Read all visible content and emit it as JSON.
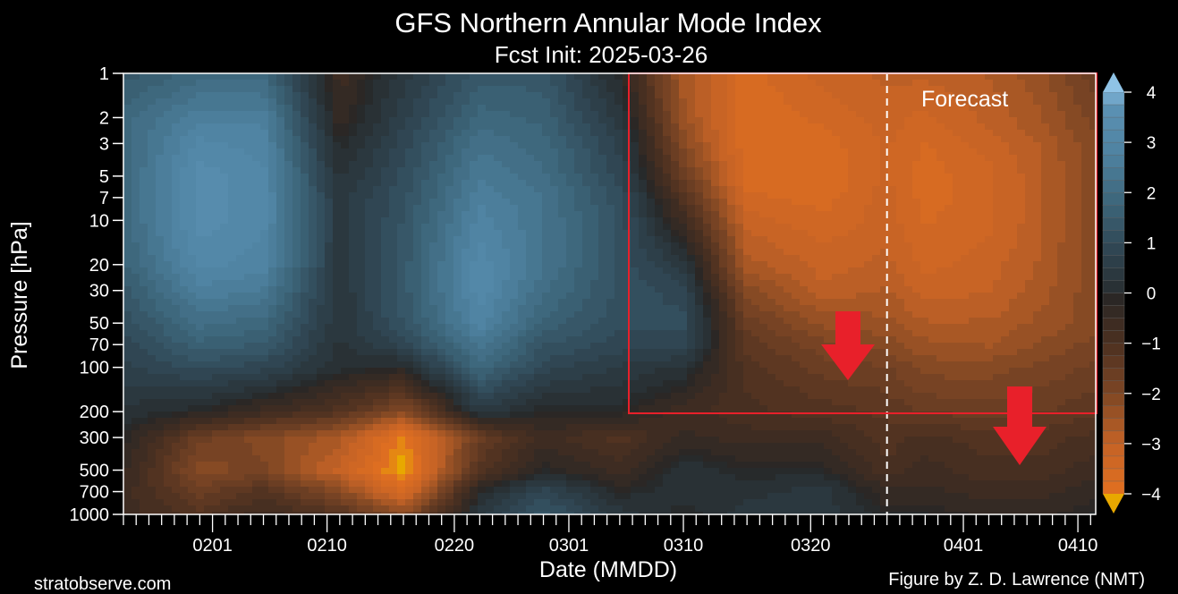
{
  "chart_data": {
    "type": "heatmap",
    "title": "GFS Northern Annular Mode Index",
    "subtitle": "Fcst Init: 2025-03-26",
    "xlabel": "Date (MMDD)",
    "ylabel": "Pressure [hPa]",
    "x_units": "day of year 2025",
    "xlim": [
      25,
      101.4
    ],
    "x_ticks": [
      {
        "day": 32,
        "label": "0201"
      },
      {
        "day": 41,
        "label": "0210"
      },
      {
        "day": 51,
        "label": "0220"
      },
      {
        "day": 60,
        "label": "0301"
      },
      {
        "day": 69,
        "label": "0310"
      },
      {
        "day": 79,
        "label": "0320"
      },
      {
        "day": 91,
        "label": "0401"
      },
      {
        "day": 100,
        "label": "0410"
      }
    ],
    "y_scale": "log",
    "ylim": [
      1000,
      1
    ],
    "y_ticks": [
      1,
      2,
      3,
      5,
      7,
      10,
      20,
      30,
      50,
      70,
      100,
      200,
      300,
      500,
      700,
      1000
    ],
    "x": [
      25,
      31,
      36,
      42,
      47,
      53,
      58,
      64,
      69,
      74,
      80,
      85,
      88,
      93,
      97,
      101
    ],
    "y": [
      1,
      2,
      3,
      5,
      7,
      10,
      20,
      30,
      50,
      70,
      100,
      200,
      300,
      500,
      700,
      1000
    ],
    "z_by_x": [
      [
        1.5,
        2,
        2,
        2,
        2,
        2,
        1.8,
        1.5,
        1.2,
        1,
        0.8,
        0.3,
        0,
        -0.3,
        -0.5,
        -0.5
      ],
      [
        2,
        2.8,
        3.2,
        3.5,
        3.5,
        3.5,
        3.2,
        2.8,
        2.2,
        1.8,
        1.2,
        0,
        -1.5,
        -2,
        -1.5,
        -1
      ],
      [
        2,
        2.8,
        3,
        3.2,
        3.2,
        3.2,
        3,
        2.6,
        2,
        1.6,
        1,
        -0.5,
        -2,
        -1.8,
        -1,
        -0.5
      ],
      [
        -0.5,
        -0.3,
        0,
        0.3,
        0.5,
        0.5,
        0.5,
        0.4,
        0.4,
        0.3,
        0.2,
        -1,
        -2.5,
        -3,
        -2,
        -1
      ],
      [
        0.5,
        0.8,
        1,
        1.2,
        1.3,
        1.4,
        1.5,
        1.5,
        1.4,
        1,
        0,
        -2,
        -4,
        -4.3,
        -3.5,
        -2
      ],
      [
        1.5,
        2,
        2.3,
        2.6,
        2.8,
        3,
        3.3,
        3.3,
        3,
        2.5,
        2,
        0.5,
        -1.5,
        -1,
        0,
        0.5
      ],
      [
        1.5,
        1.8,
        2,
        2.2,
        2.4,
        2.4,
        2.4,
        2.2,
        1.8,
        1.4,
        1,
        0,
        -0.5,
        0,
        1,
        1.5
      ],
      [
        0,
        0.5,
        0.8,
        1,
        1.2,
        1.3,
        1.3,
        1.3,
        1.2,
        1,
        0.6,
        0,
        -1,
        -0.5,
        0,
        0.5
      ],
      [
        -2.5,
        -2.3,
        -2,
        -1.5,
        -1,
        -0.5,
        0.5,
        1,
        1.2,
        1,
        0.3,
        -0.5,
        -0.3,
        0.3,
        0.3,
        0
      ],
      [
        -3.5,
        -3.6,
        -3.6,
        -3.5,
        -3.3,
        -3,
        -2.5,
        -2,
        -1.5,
        -1.2,
        -1,
        -0.8,
        -0.5,
        0,
        0.3,
        0.5
      ],
      [
        -3,
        -3.3,
        -3.5,
        -3.6,
        -3.5,
        -3.3,
        -3,
        -2.8,
        -2.2,
        -1.8,
        -1.5,
        -1,
        -0.5,
        0,
        0.5,
        0.5
      ],
      [
        -2.8,
        -3,
        -3.1,
        -3.1,
        -3,
        -3,
        -2.8,
        -2.6,
        -2.3,
        -2,
        -1.6,
        -1.2,
        -1,
        -0.8,
        -0.3,
        0
      ],
      [
        -2.8,
        -3.2,
        -3.4,
        -3.5,
        -3.5,
        -3.4,
        -3.2,
        -3,
        -2.6,
        -2.3,
        -2,
        -1.4,
        -0.8,
        -0.5,
        -0.3,
        0
      ],
      [
        -2.6,
        -2.8,
        -3,
        -3.2,
        -3.2,
        -3.2,
        -3,
        -2.9,
        -2.6,
        -2.4,
        -2,
        -1.5,
        -1,
        -0.8,
        -0.5,
        -0.2
      ],
      [
        -2.2,
        -2.4,
        -2.6,
        -2.7,
        -2.7,
        -2.7,
        -2.6,
        -2.5,
        -2.3,
        -2.1,
        -1.8,
        -1.4,
        -1,
        -0.8,
        -0.5,
        -0.2
      ],
      [
        -1.5,
        -1.8,
        -2,
        -2,
        -2,
        -2,
        -2,
        -2,
        -2,
        -1.8,
        -1.6,
        -1.2,
        -0.8,
        -0.5,
        -0.2,
        0
      ]
    ],
    "colorbar": {
      "range": [
        -4,
        4
      ],
      "step": 0.25,
      "ticks": [
        "4",
        "3",
        "2",
        "1",
        "0",
        "−1",
        "−2",
        "−3",
        "−4"
      ],
      "tick_values": [
        4,
        3,
        2,
        1,
        0,
        -1,
        -2,
        -3,
        -4
      ]
    },
    "forecast_start_day": 85,
    "annotations": {
      "forecast_label": "Forecast",
      "highlight_box_color": "#e8202a",
      "arrow_color": "#e8202a"
    },
    "colors": {
      "positive_max": "#8fc3e6",
      "positive": "#4f86a6",
      "neutral": "#262626",
      "negative": "#c9621f",
      "negative_max": "#e8a800"
    }
  },
  "footer": {
    "source": "stratobserve.com",
    "credit": "Figure by Z. D. Lawrence (NMT)"
  }
}
